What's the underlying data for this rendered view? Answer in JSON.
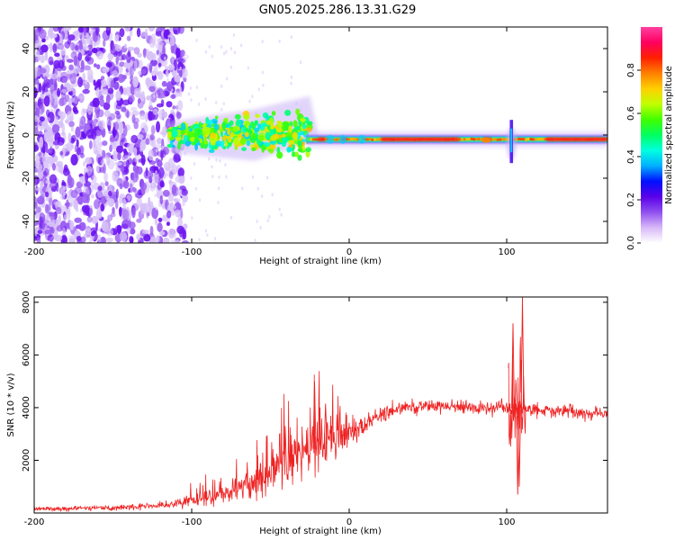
{
  "page_title": "GN05.2025.286.13.31.G29",
  "chart_data": [
    {
      "type": "heatmap",
      "name": "spectrogram",
      "xlabel": "Height of straight line (km)",
      "ylabel": "Frequency (Hz)",
      "xlim": [
        -200,
        164
      ],
      "ylim": [
        -50,
        50
      ],
      "x_ticks": [
        -200,
        -100,
        0,
        100
      ],
      "x_tick_labels": [
        "-200",
        "-100",
        "0",
        "100"
      ],
      "y_ticks": [
        -40,
        -20,
        0,
        20,
        40
      ],
      "y_tick_labels": [
        "-40",
        "-20",
        "0",
        "20",
        "40"
      ],
      "colorbar": {
        "label": "Normalized spectral amplitude",
        "range": [
          0.0,
          1.0
        ],
        "ticks": [
          0.0,
          0.2,
          0.4,
          0.6,
          0.8
        ],
        "tick_labels": [
          "0.0",
          "0.2",
          "0.4",
          "0.6",
          "0.8"
        ],
        "colors": [
          "#ffffff",
          "#d8b8f8",
          "#9050f0",
          "#5a00e8",
          "#0010ff",
          "#00b0ff",
          "#00ffe0",
          "#00ff60",
          "#40ff00",
          "#c0ff00",
          "#ffd000",
          "#ff8000",
          "#ff2000",
          "#ff0060",
          "#ff40a0"
        ]
      },
      "features": {
        "noise_region_km": [
          -200,
          -110
        ],
        "transition_km": [
          -115,
          -25
        ],
        "carrier_line_hz": -2,
        "strong_segments_km": [
          [
            -20,
            -15
          ],
          [
            -5,
            -2
          ],
          [
            20,
            70
          ],
          [
            85,
            90
          ],
          [
            125,
            164
          ]
        ],
        "disturbance_km": 103
      }
    },
    {
      "type": "line",
      "name": "snr",
      "xlabel": "Height of straight line (km)",
      "ylabel": "SNR (10 * v/v)",
      "xlim": [
        -200,
        164
      ],
      "ylim": [
        0,
        8200
      ],
      "x_ticks": [
        -200,
        -100,
        0,
        100
      ],
      "x_tick_labels": [
        "-200",
        "-100",
        "0",
        "100"
      ],
      "y_ticks": [
        2000,
        4000,
        6000,
        8000
      ],
      "y_tick_labels": [
        "2000",
        "4000",
        "6000",
        "8000"
      ],
      "color": "#ee2222",
      "envelope": {
        "x": [
          -200,
          -150,
          -120,
          -100,
          -80,
          -60,
          -40,
          -20,
          0,
          10,
          20,
          30,
          40,
          60,
          80,
          100,
          105,
          110,
          120,
          140,
          164
        ],
        "y": [
          150,
          200,
          280,
          450,
          700,
          1100,
          1900,
          2500,
          3000,
          3350,
          3700,
          3950,
          4050,
          4050,
          4000,
          4000,
          3950,
          3950,
          3900,
          3850,
          3750
        ]
      },
      "noise": {
        "x": [
          -200,
          -150,
          -120,
          -100,
          -80,
          -60,
          -40,
          -20,
          0,
          10,
          20,
          40,
          100,
          164
        ],
        "y": [
          60,
          80,
          100,
          180,
          300,
          450,
          700,
          800,
          450,
          300,
          250,
          220,
          200,
          180
        ]
      },
      "spikes": [
        {
          "x": -22,
          "y": 5000
        },
        {
          "x": -15,
          "y": 4150
        },
        {
          "x": 104,
          "y": 7200
        },
        {
          "x": 107,
          "y": 700
        },
        {
          "x": 108,
          "y": 1000
        },
        {
          "x": 110,
          "y": 8200
        }
      ]
    }
  ]
}
